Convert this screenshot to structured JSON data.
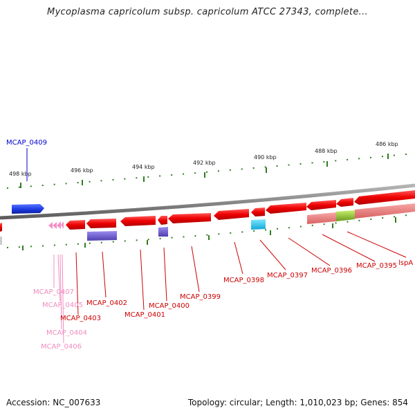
{
  "title": "Mycoplasma capricolum subsp. capricolum ATCC 27343, complete...",
  "footer": {
    "accession": "Accession: NC_007633",
    "summary": "Topology: circular; Length: 1,010,023 bp; Genes: 854"
  },
  "colors": {
    "backbone": "#8a8a8a",
    "tick": "#2e7d1e",
    "forward_gene": "#1f3fe6",
    "reverse_gene": "#ee0000",
    "rna_gene": "#f48fc8",
    "feature_purple": "#6a5acd",
    "feature_cyan": "#1ec8f0",
    "feature_salmon": "#f08080",
    "feature_green": "#9acd32",
    "label_blue": "#0000cc",
    "label_red": "#cc0000",
    "label_pink": "#f08cc0"
  },
  "scale_labels": [
    "498 kbp",
    "496 kbp",
    "494 kbp",
    "492 kbp",
    "490 kbp",
    "488 kbp",
    "486 kbp"
  ],
  "genes": [
    {
      "label": "MCAP_0409",
      "strand": "forward",
      "kind": "cds"
    },
    {
      "label": "MCAP_0407",
      "strand": "reverse",
      "kind": "rna"
    },
    {
      "label": "MCAP_0405",
      "strand": "reverse",
      "kind": "rna"
    },
    {
      "label": "MCAP_0404",
      "strand": "reverse",
      "kind": "rna"
    },
    {
      "label": "MCAP_0406",
      "strand": "reverse",
      "kind": "rna"
    },
    {
      "label": "MCAP_0403",
      "strand": "reverse",
      "kind": "cds"
    },
    {
      "label": "MCAP_0402",
      "strand": "reverse",
      "kind": "cds"
    },
    {
      "label": "MCAP_0401",
      "strand": "reverse",
      "kind": "cds"
    },
    {
      "label": "MCAP_0400",
      "strand": "reverse",
      "kind": "cds"
    },
    {
      "label": "MCAP_0399",
      "strand": "reverse",
      "kind": "cds"
    },
    {
      "label": "MCAP_0398",
      "strand": "reverse",
      "kind": "cds"
    },
    {
      "label": "MCAP_0397",
      "strand": "reverse",
      "kind": "cds"
    },
    {
      "label": "MCAP_0396",
      "strand": "reverse",
      "kind": "cds"
    },
    {
      "label": "MCAP_0395",
      "strand": "reverse",
      "kind": "cds"
    },
    {
      "label": "lspA",
      "strand": "reverse",
      "kind": "cds"
    }
  ]
}
